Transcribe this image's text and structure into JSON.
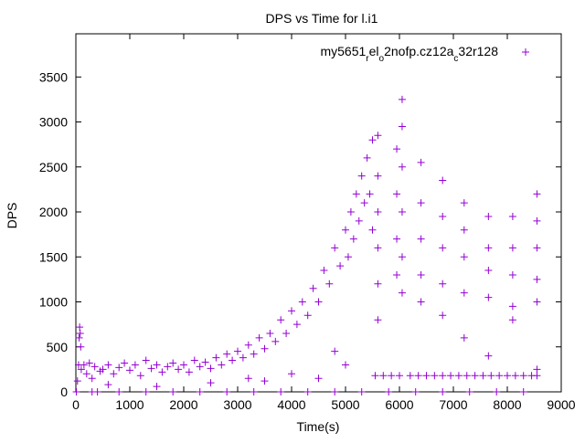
{
  "chart_data": {
    "type": "scatter",
    "title": "DPS vs Time for l.i1",
    "xlabel": "Time(s)",
    "ylabel": "DPS",
    "xlim": [
      0,
      9000
    ],
    "ylim": [
      0,
      3980
    ],
    "xticks": [
      0,
      1000,
      2000,
      3000,
      4000,
      5000,
      6000,
      7000,
      8000,
      9000
    ],
    "yticks": [
      0,
      500,
      1000,
      1500,
      2000,
      2500,
      3000,
      3500
    ],
    "grid": false,
    "legend_position": "top-right",
    "series": [
      {
        "name": "my5651_rel_o2nofp.cz12a_c32r128",
        "legend_parts": [
          {
            "t": "my5651",
            "sub": false
          },
          {
            "t": "r",
            "sub": true
          },
          {
            "t": "el",
            "sub": false
          },
          {
            "t": "o",
            "sub": true
          },
          {
            "t": "2nofp.cz12a",
            "sub": false
          },
          {
            "t": "c",
            "sub": true
          },
          {
            "t": "32r128",
            "sub": false
          }
        ],
        "color": "#9400d3",
        "marker": "+",
        "points": [
          [
            10,
            0
          ],
          [
            30,
            120
          ],
          [
            50,
            300
          ],
          [
            60,
            600
          ],
          [
            70,
            720
          ],
          [
            80,
            650
          ],
          [
            90,
            500
          ],
          [
            100,
            250
          ],
          [
            150,
            300
          ],
          [
            200,
            200
          ],
          [
            250,
            320
          ],
          [
            300,
            150
          ],
          [
            350,
            280
          ],
          [
            400,
            0
          ],
          [
            450,
            230
          ],
          [
            500,
            250
          ],
          [
            600,
            300
          ],
          [
            700,
            200
          ],
          [
            800,
            270
          ],
          [
            900,
            320
          ],
          [
            1000,
            240
          ],
          [
            1100,
            300
          ],
          [
            1200,
            180
          ],
          [
            1300,
            350
          ],
          [
            1400,
            260
          ],
          [
            1500,
            300
          ],
          [
            1600,
            220
          ],
          [
            1700,
            280
          ],
          [
            1800,
            320
          ],
          [
            1900,
            250
          ],
          [
            2000,
            300
          ],
          [
            2100,
            220
          ],
          [
            2200,
            350
          ],
          [
            2300,
            280
          ],
          [
            2400,
            330
          ],
          [
            2500,
            260
          ],
          [
            2600,
            380
          ],
          [
            2700,
            300
          ],
          [
            2800,
            420
          ],
          [
            2900,
            350
          ],
          [
            3000,
            450
          ],
          [
            3100,
            380
          ],
          [
            3200,
            520
          ],
          [
            3300,
            420
          ],
          [
            3400,
            600
          ],
          [
            3500,
            480
          ],
          [
            3600,
            650
          ],
          [
            3700,
            560
          ],
          [
            3800,
            800
          ],
          [
            3900,
            650
          ],
          [
            4000,
            900
          ],
          [
            4100,
            750
          ],
          [
            4200,
            1000
          ],
          [
            4300,
            850
          ],
          [
            4400,
            1150
          ],
          [
            4500,
            1000
          ],
          [
            4600,
            1350
          ],
          [
            4700,
            1200
          ],
          [
            4800,
            1600
          ],
          [
            4900,
            1400
          ],
          [
            5000,
            1800
          ],
          [
            5050,
            1500
          ],
          [
            5100,
            2000
          ],
          [
            5150,
            1700
          ],
          [
            5200,
            2200
          ],
          [
            5250,
            1900
          ],
          [
            5300,
            2400
          ],
          [
            5350,
            2100
          ],
          [
            5400,
            2600
          ],
          [
            5450,
            2200
          ],
          [
            5500,
            2800
          ],
          [
            5500,
            1800
          ],
          [
            300,
            0
          ],
          [
            800,
            0
          ],
          [
            1300,
            0
          ],
          [
            1800,
            0
          ],
          [
            2300,
            0
          ],
          [
            2800,
            0
          ],
          [
            3300,
            0
          ],
          [
            3800,
            0
          ],
          [
            4300,
            0
          ],
          [
            4800,
            0
          ],
          [
            5300,
            0
          ],
          [
            5800,
            0
          ],
          [
            6300,
            0
          ],
          [
            6800,
            0
          ],
          [
            7300,
            0
          ],
          [
            7800,
            0
          ],
          [
            8300,
            0
          ],
          [
            600,
            80
          ],
          [
            1500,
            60
          ],
          [
            2500,
            100
          ],
          [
            3500,
            120
          ],
          [
            4000,
            200
          ],
          [
            4500,
            150
          ],
          [
            5000,
            300
          ],
          [
            3200,
            150
          ],
          [
            4800,
            450
          ],
          [
            5550,
            180
          ],
          [
            5700,
            180
          ],
          [
            5850,
            180
          ],
          [
            6000,
            180
          ],
          [
            6200,
            180
          ],
          [
            6350,
            180
          ],
          [
            6500,
            180
          ],
          [
            6650,
            180
          ],
          [
            6800,
            180
          ],
          [
            6950,
            180
          ],
          [
            7100,
            180
          ],
          [
            7250,
            180
          ],
          [
            7400,
            180
          ],
          [
            7550,
            180
          ],
          [
            7700,
            180
          ],
          [
            7850,
            180
          ],
          [
            8000,
            180
          ],
          [
            8150,
            180
          ],
          [
            8300,
            180
          ],
          [
            8450,
            180
          ],
          [
            8550,
            180
          ],
          [
            5600,
            2850
          ],
          [
            5600,
            2400
          ],
          [
            5600,
            2000
          ],
          [
            5600,
            1600
          ],
          [
            5600,
            1200
          ],
          [
            5600,
            800
          ],
          [
            5950,
            2700
          ],
          [
            5950,
            2200
          ],
          [
            5950,
            1700
          ],
          [
            5950,
            1300
          ],
          [
            6050,
            3250
          ],
          [
            6050,
            2950
          ],
          [
            6050,
            2500
          ],
          [
            6050,
            2000
          ],
          [
            6050,
            1500
          ],
          [
            6050,
            1100
          ],
          [
            6400,
            2550
          ],
          [
            6400,
            2100
          ],
          [
            6400,
            1700
          ],
          [
            6400,
            1300
          ],
          [
            6400,
            1000
          ],
          [
            6800,
            2350
          ],
          [
            6800,
            1950
          ],
          [
            6800,
            1600
          ],
          [
            6800,
            1200
          ],
          [
            6800,
            850
          ],
          [
            7200,
            2100
          ],
          [
            7200,
            1800
          ],
          [
            7200,
            1500
          ],
          [
            7200,
            1100
          ],
          [
            7200,
            600
          ],
          [
            7650,
            1950
          ],
          [
            7650,
            1600
          ],
          [
            7650,
            1350
          ],
          [
            7650,
            1050
          ],
          [
            7650,
            400
          ],
          [
            8100,
            1950
          ],
          [
            8100,
            1600
          ],
          [
            8100,
            1300
          ],
          [
            8100,
            950
          ],
          [
            8100,
            800
          ],
          [
            8550,
            2200
          ],
          [
            8550,
            1900
          ],
          [
            8550,
            1600
          ],
          [
            8550,
            1250
          ],
          [
            8550,
            1000
          ],
          [
            8550,
            250
          ]
        ]
      }
    ]
  }
}
